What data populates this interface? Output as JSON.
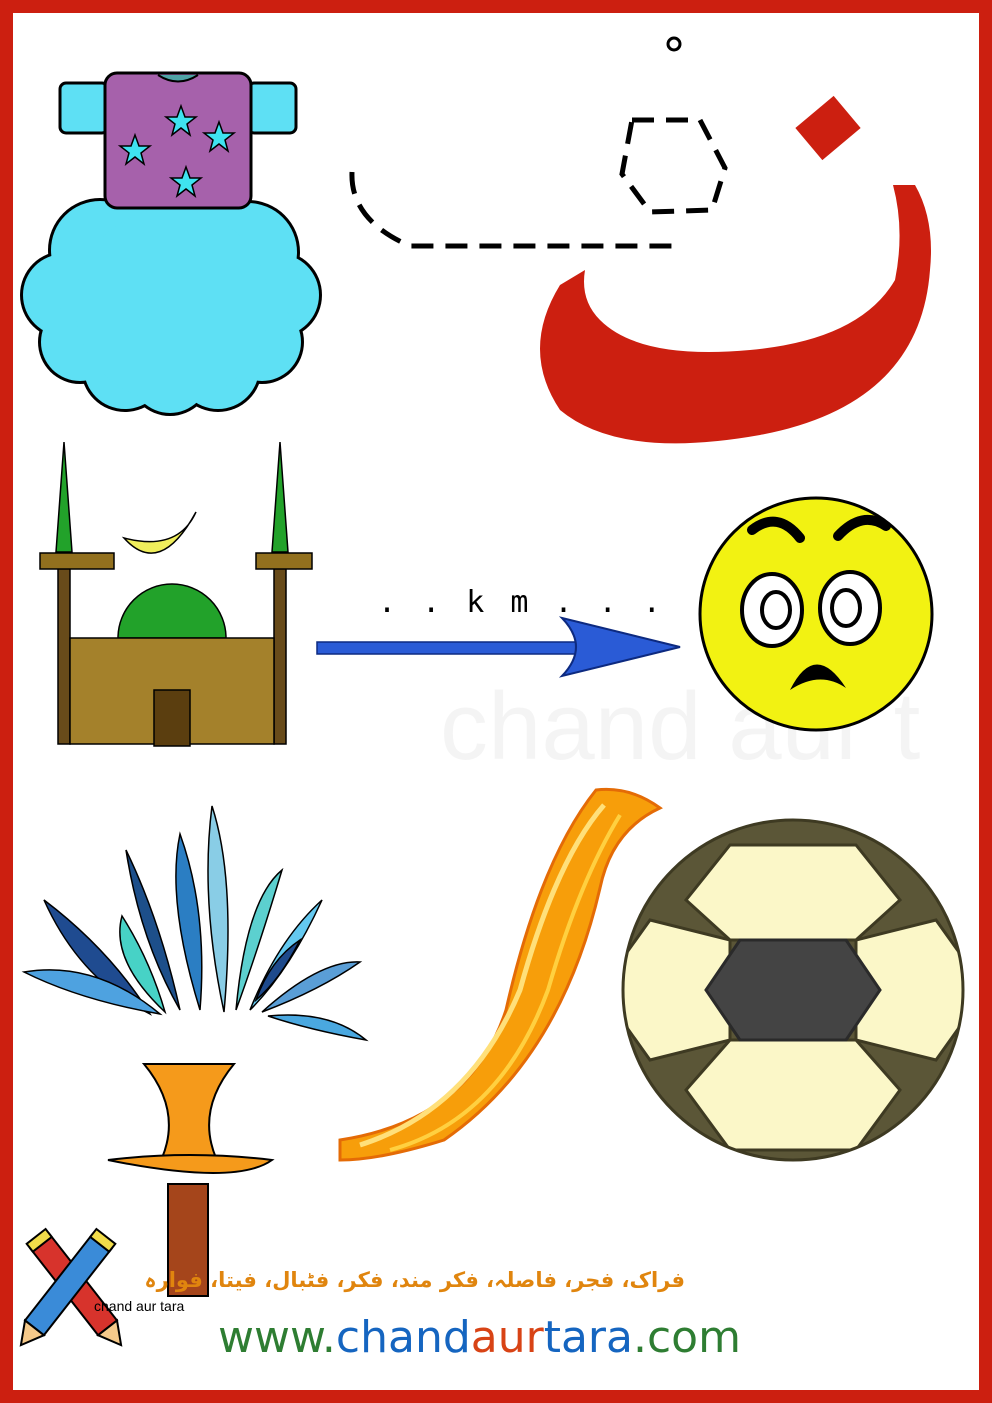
{
  "letter": {
    "glyph": "ف",
    "color": "#cc1f10"
  },
  "riddle_text": ". . k m . . .",
  "words": "فراک، فجر، فاصلہ، فکر مند، فکر، فٹبال، فیتا، فوارہ",
  "website": {
    "part1": "www.",
    "part2": "chand",
    "part3": "aur",
    "part4": "tara",
    "part5": ".com",
    "colors": {
      "part1": "#2e7d32",
      "part2": "#1565c0",
      "part3": "#d84315",
      "part4": "#1565c0",
      "part5": "#2e7d32"
    }
  },
  "logo_caption": "chand aur tara",
  "watermark_text": "chand aur t",
  "pictures": [
    {
      "name": "frock",
      "icon": "frock-icon"
    },
    {
      "name": "mosque",
      "icon": "mosque-icon"
    },
    {
      "name": "worried-face",
      "icon": "worried-face-icon"
    },
    {
      "name": "fountain",
      "icon": "fountain-icon"
    },
    {
      "name": "ribbon",
      "icon": "ribbon-icon"
    },
    {
      "name": "football",
      "icon": "football-icon"
    }
  ]
}
